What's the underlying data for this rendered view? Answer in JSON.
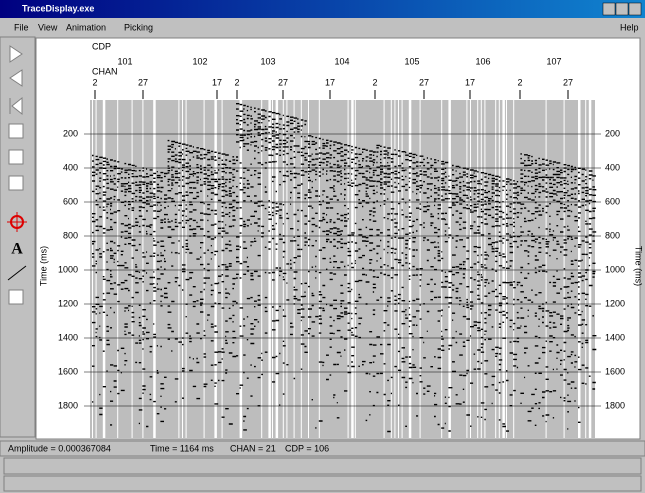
{
  "window": {
    "title": "TraceDisplay.exe",
    "help": "Help"
  },
  "menu": [
    "File",
    "View",
    "Animation",
    "Picking"
  ],
  "toolbar": {
    "text_tool": "A"
  },
  "header": {
    "cdp_label": "CDP",
    "chan_label": "CHAN",
    "cdps": [
      "101",
      "102",
      "103",
      "104",
      "105",
      "106",
      "107"
    ],
    "chans": [
      "2",
      "27",
      "17",
      "2",
      "27",
      "17",
      "2",
      "27",
      "17",
      "2",
      "27"
    ]
  },
  "axis": {
    "left_title": "Time (ms)",
    "right_title": "Time (ms)",
    "ticks": [
      200,
      400,
      600,
      800,
      1000,
      1200,
      1400,
      1600,
      1800
    ]
  },
  "status": [
    "Amplitude = 0.000367084",
    "Time = 1164 ms",
    "CHAN = 21",
    "CDP = 106"
  ]
}
